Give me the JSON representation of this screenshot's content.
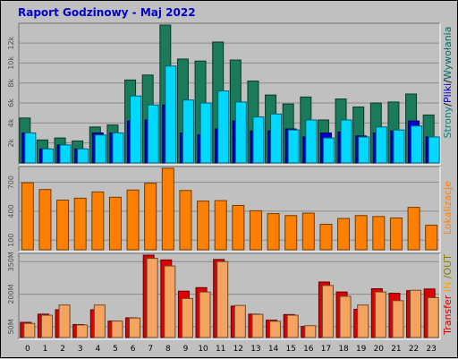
{
  "title": "Raport Godzinowy -  Maj 2022",
  "chart_data": [
    {
      "type": "bar",
      "categories": [
        "0",
        "1",
        "2",
        "3",
        "4",
        "5",
        "6",
        "7",
        "8",
        "9",
        "10",
        "11",
        "12",
        "13",
        "14",
        "15",
        "16",
        "17",
        "18",
        "19",
        "20",
        "21",
        "22",
        "23"
      ],
      "y_ticks": [
        "2k",
        "4k",
        "6k",
        "8k",
        "10k",
        "12k"
      ],
      "ylim": [
        0,
        13800
      ],
      "side_label": [
        {
          "text": "Strony",
          "color": "#008080"
        },
        {
          "text": "/",
          "color": "#000000"
        },
        {
          "text": "Pliki",
          "color": "#0000cc"
        },
        {
          "text": "/",
          "color": "#000000"
        },
        {
          "text": "Wywołania",
          "color": "#006666"
        }
      ],
      "series": [
        {
          "values": [
            4500,
            2300,
            2500,
            2200,
            3600,
            3800,
            8300,
            8800,
            13800,
            10400,
            10200,
            12100,
            10300,
            8200,
            6800,
            5900,
            6600,
            4300,
            6400,
            5600,
            6000,
            6100,
            6900,
            4800
          ],
          "color": "#1a7a5a"
        },
        {
          "values": [
            3000,
            1400,
            1800,
            1400,
            3000,
            3000,
            4200,
            4300,
            5800,
            3000,
            2800,
            3400,
            4200,
            3200,
            3200,
            3400,
            2600,
            3000,
            3100,
            2700,
            3000,
            3200,
            4200,
            2600
          ],
          "color": "#0000cc"
        },
        {
          "values": [
            3000,
            1400,
            1800,
            1400,
            2800,
            3000,
            6700,
            5800,
            9700,
            6300,
            6000,
            7200,
            6100,
            4600,
            4900,
            3300,
            4300,
            2500,
            4300,
            2600,
            3600,
            3300,
            3700,
            2600
          ],
          "color": "#00d8ff"
        }
      ]
    },
    {
      "type": "bar",
      "categories": [
        "0",
        "1",
        "2",
        "3",
        "4",
        "5",
        "6",
        "7",
        "8",
        "9",
        "10",
        "11",
        "12",
        "13",
        "14",
        "15",
        "16",
        "17",
        "18",
        "19",
        "20",
        "21",
        "22",
        "23"
      ],
      "y_ticks": [
        "100",
        "400",
        "700"
      ],
      "ylim": [
        0,
        845
      ],
      "side_label": [
        {
          "text": "Lokalizacje",
          "color": "#ff8000"
        }
      ],
      "series": [
        {
          "values": [
            695,
            625,
            515,
            535,
            600,
            545,
            620,
            690,
            845,
            615,
            505,
            510,
            460,
            405,
            375,
            355,
            380,
            265,
            325,
            355,
            345,
            330,
            440,
            255
          ],
          "color": "#ff8000"
        }
      ]
    },
    {
      "type": "bar",
      "categories": [
        "0",
        "1",
        "2",
        "3",
        "4",
        "5",
        "6",
        "7",
        "8",
        "9",
        "10",
        "11",
        "12",
        "13",
        "14",
        "15",
        "16",
        "17",
        "18",
        "19",
        "20",
        "21",
        "22",
        "23"
      ],
      "y_ticks": [
        "50M",
        "200M",
        "350M"
      ],
      "ylim": [
        0,
        380
      ],
      "side_label": [
        {
          "text": "Transfer",
          "color": "#cc0000"
        },
        {
          "text": " ",
          "color": "#000000"
        },
        {
          "text": "IN",
          "color": "#ffa500"
        },
        {
          "text": " ",
          "color": "#000000"
        },
        {
          "text": "/OUT",
          "color": "#808000"
        }
      ],
      "series": [
        {
          "values": [
            70,
            108,
            128,
            60,
            128,
            76,
            91,
            380,
            358,
            214,
            230,
            360,
            145,
            108,
            80,
            106,
            51,
            256,
            210,
            130,
            225,
            204,
            216,
            224
          ],
          "color": "#dd0000"
        },
        {
          "values": [
            65,
            103,
            150,
            58,
            150,
            76,
            90,
            365,
            330,
            180,
            210,
            350,
            148,
            107,
            75,
            103,
            55,
            240,
            190,
            150,
            210,
            170,
            218,
            184
          ],
          "color": "#f4a460"
        }
      ]
    }
  ]
}
